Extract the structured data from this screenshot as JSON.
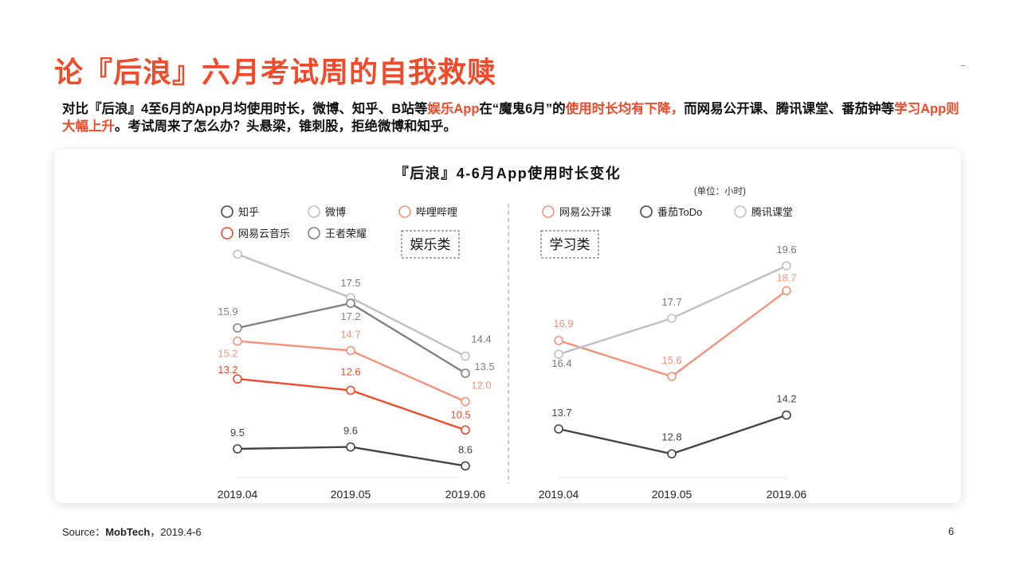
{
  "title": "论『后浪』六月考试周的自我救赎",
  "intro": {
    "p1": "对比『后浪』4至6月的App月均使用时长，微博、知乎、B站等",
    "h1": "娱乐App",
    "p2": "在“魔鬼6月”的",
    "h2": "使用时长均有下降，",
    "p3": "而网易公开课、腾讯课堂、番茄钟等",
    "h3": "学习App则大幅上升",
    "p4": "。考试周来了怎么办？头悬梁，锥刺股，拒绝微博和知乎。"
  },
  "source": {
    "prefix": "Source：",
    "name": "MobTech",
    "suffix": "，2019.4-6"
  },
  "page_number": "6",
  "chart_data": {
    "type": "line",
    "title": "『后浪』4-6月App使用时长变化",
    "unit_note": "(单位：小时)",
    "categories": [
      "2019.04",
      "2019.05",
      "2019.06"
    ],
    "panels": [
      {
        "name": "娱乐类",
        "ylim": [
          7,
          22
        ],
        "series": [
          {
            "name": "知乎",
            "color": "#444444",
            "values": [
              9.5,
              9.6,
              8.6
            ],
            "labels": [
              "9.5",
              "9.6",
              "8.6"
            ]
          },
          {
            "name": "微博",
            "color": "#c0c0c0",
            "values": [
              19.8,
              17.5,
              14.4
            ],
            "labels": [
              "",
              "17.5",
              "14.4"
            ]
          },
          {
            "name": "哔哩哔哩",
            "color": "#f7927a",
            "values": [
              15.2,
              14.7,
              12.0
            ],
            "labels": [
              "15.2",
              "14.7",
              "12.0"
            ]
          },
          {
            "name": "网易云音乐",
            "color": "#f04a2b",
            "values": [
              13.2,
              12.6,
              10.5
            ],
            "labels": [
              "13.2",
              "12.6",
              "10.5"
            ]
          },
          {
            "name": "王者荣耀",
            "color": "#808080",
            "values": [
              15.9,
              17.2,
              13.5
            ],
            "labels": [
              "15.9",
              "17.2",
              "13.5"
            ]
          }
        ]
      },
      {
        "name": "学习类",
        "ylim": [
          11,
          21
        ],
        "series": [
          {
            "name": "网易公开课",
            "color": "#f7927a",
            "values": [
              16.9,
              15.6,
              18.7
            ],
            "labels": [
              "16.9",
              "15.6",
              "18.7"
            ]
          },
          {
            "name": "番茄ToDo",
            "color": "#444444",
            "values": [
              13.7,
              12.8,
              14.2
            ],
            "labels": [
              "13.7",
              "12.8",
              "14.2"
            ]
          },
          {
            "name": "腾讯课堂",
            "color": "#c0c0c0",
            "values": [
              16.4,
              17.7,
              19.6
            ],
            "labels": [
              "16.4",
              "17.7",
              "19.6"
            ]
          }
        ]
      }
    ]
  }
}
